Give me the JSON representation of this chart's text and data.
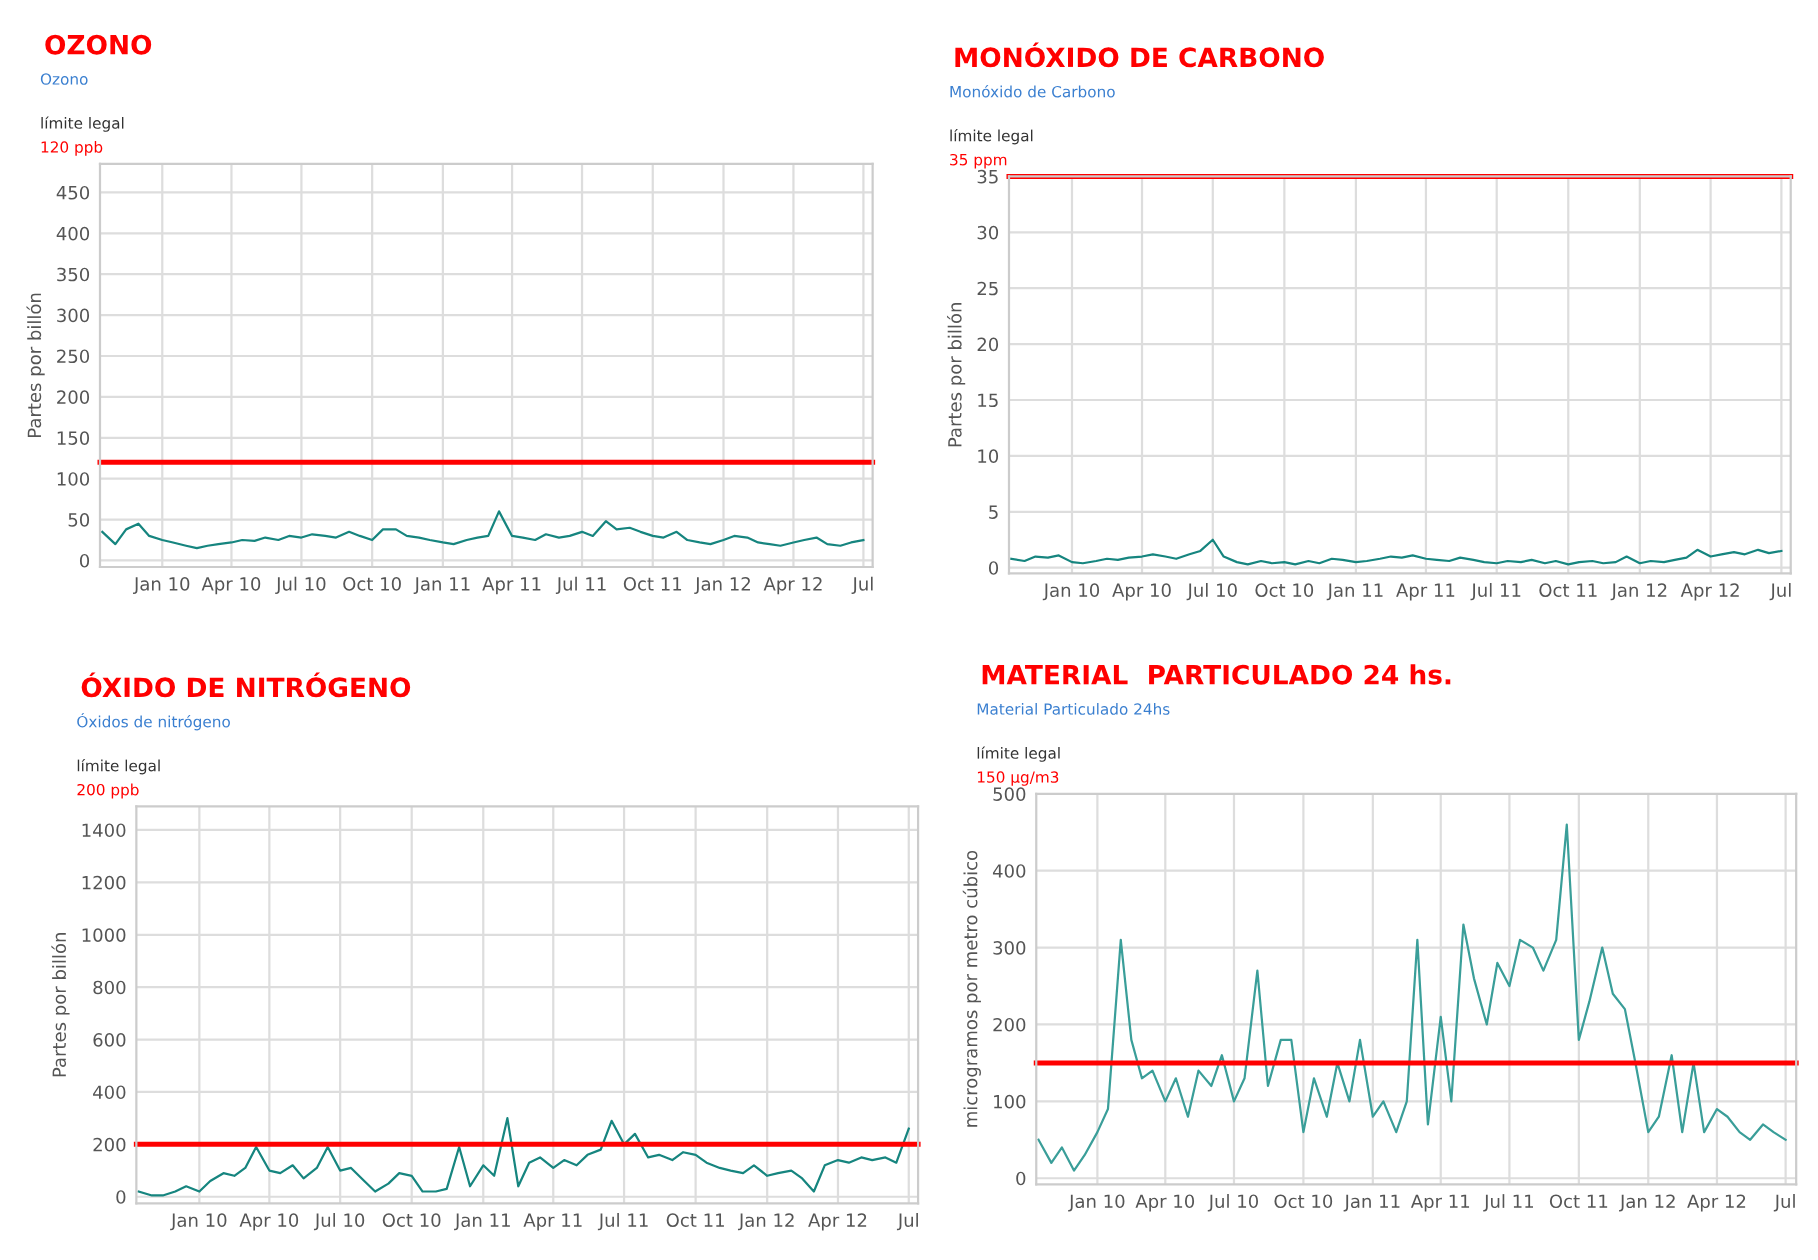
{
  "chart_data": [
    {
      "type": "line",
      "title": "OZONO",
      "subtitle": "Ozono",
      "ylabel": "Partes por billón",
      "annotations": [
        "límite legal"
      ],
      "x": [
        "2009-10-15",
        "2009-11-01",
        "2009-11-15",
        "2009-12-01",
        "2009-12-15",
        "2010-01-01",
        "2010-01-15",
        "2010-02-01",
        "2010-02-15",
        "2010-03-01",
        "2010-03-15",
        "2010-04-01",
        "2010-04-15",
        "2010-05-01",
        "2010-05-15",
        "2010-06-01",
        "2010-06-15",
        "2010-07-01",
        "2010-07-15",
        "2010-08-01",
        "2010-08-15",
        "2010-09-01",
        "2010-09-15",
        "2010-10-01",
        "2010-10-15",
        "2010-11-01",
        "2010-11-15",
        "2010-12-01",
        "2010-12-15",
        "2011-01-01",
        "2011-01-15",
        "2011-02-01",
        "2011-02-15",
        "2011-03-01",
        "2011-03-15",
        "2011-04-01",
        "2011-04-15",
        "2011-05-01",
        "2011-05-15",
        "2011-06-01",
        "2011-06-15",
        "2011-07-01",
        "2011-07-15",
        "2011-08-01",
        "2011-08-15",
        "2011-09-01",
        "2011-09-15",
        "2011-10-01",
        "2011-10-15",
        "2011-11-01",
        "2011-11-15",
        "2011-12-01",
        "2011-12-15",
        "2012-01-01",
        "2012-01-15",
        "2012-02-01",
        "2012-02-15",
        "2012-03-01",
        "2012-03-15",
        "2012-04-01",
        "2012-04-15",
        "2012-05-01",
        "2012-05-15",
        "2012-06-01",
        "2012-06-15",
        "2012-07-01"
      ],
      "series": [
        {
          "color": "#16857f",
          "values": [
            35,
            20,
            38,
            45,
            30,
            25,
            22,
            18,
            15,
            18,
            20,
            22,
            25,
            24,
            28,
            25,
            30,
            28,
            32,
            30,
            28,
            35,
            30,
            25,
            38,
            38,
            30,
            28,
            25,
            22,
            20,
            25,
            28,
            30,
            60,
            30,
            28,
            25,
            32,
            28,
            30,
            35,
            30,
            48,
            38,
            40,
            35,
            30,
            28,
            35,
            25,
            22,
            20,
            25,
            30,
            28,
            22,
            20,
            18,
            22,
            25,
            28,
            20,
            18,
            22,
            25
          ]
        }
      ],
      "xlim": [
        "2009-10-12",
        "2012-07-13"
      ],
      "xticks": [
        {
          "value": "2010-01-01",
          "label": "Jan 10"
        },
        {
          "value": "2010-04-01",
          "label": "Apr 10"
        },
        {
          "value": "2010-07-01",
          "label": "Jul 10"
        },
        {
          "value": "2010-10-01",
          "label": "Oct 10"
        },
        {
          "value": "2011-01-01",
          "label": "Jan 11"
        },
        {
          "value": "2011-04-01",
          "label": "Apr 11"
        },
        {
          "value": "2011-07-01",
          "label": "Jul 11"
        },
        {
          "value": "2011-10-01",
          "label": "Oct 11"
        },
        {
          "value": "2012-01-01",
          "label": "Jan 12"
        },
        {
          "value": "2012-04-01",
          "label": "Apr 12"
        },
        {
          "value": "2012-07-01",
          "label": "Jul"
        }
      ],
      "ylim": [
        -8,
        485
      ],
      "yticks": [
        0,
        50,
        100,
        150,
        200,
        250,
        300,
        350,
        400,
        450
      ],
      "grid": true,
      "ref_lines": [
        {
          "axis": "y",
          "value": 120,
          "label": "120 ppb",
          "color": "#ff0000"
        }
      ]
    },
    {
      "type": "line",
      "title": "MONÓXIDO DE CARBONO",
      "subtitle": "Monóxido de Carbono",
      "ylabel": "Partes por billón",
      "annotations": [
        "límite legal"
      ],
      "x": [
        "2009-10-15",
        "2009-11-01",
        "2009-11-15",
        "2009-12-01",
        "2009-12-15",
        "2010-01-01",
        "2010-01-15",
        "2010-02-01",
        "2010-02-15",
        "2010-03-01",
        "2010-03-15",
        "2010-04-01",
        "2010-04-15",
        "2010-05-01",
        "2010-05-15",
        "2010-06-01",
        "2010-06-15",
        "2010-07-01",
        "2010-07-15",
        "2010-08-01",
        "2010-08-15",
        "2010-09-01",
        "2010-09-15",
        "2010-10-01",
        "2010-10-15",
        "2010-11-01",
        "2010-11-15",
        "2010-12-01",
        "2010-12-15",
        "2011-01-01",
        "2011-01-15",
        "2011-02-01",
        "2011-02-15",
        "2011-03-01",
        "2011-03-15",
        "2011-04-01",
        "2011-04-15",
        "2011-05-01",
        "2011-05-15",
        "2011-06-01",
        "2011-06-15",
        "2011-07-01",
        "2011-07-15",
        "2011-08-01",
        "2011-08-15",
        "2011-09-01",
        "2011-09-15",
        "2011-10-01",
        "2011-10-15",
        "2011-11-01",
        "2011-11-15",
        "2011-12-01",
        "2011-12-15",
        "2012-01-01",
        "2012-01-15",
        "2012-02-01",
        "2012-02-15",
        "2012-03-01",
        "2012-03-15",
        "2012-04-01",
        "2012-04-15",
        "2012-05-01",
        "2012-05-15",
        "2012-06-01",
        "2012-06-15",
        "2012-07-01"
      ],
      "series": [
        {
          "color": "#16857f",
          "values": [
            0.8,
            0.6,
            1.0,
            0.9,
            1.1,
            0.5,
            0.4,
            0.6,
            0.8,
            0.7,
            0.9,
            1.0,
            1.2,
            1.0,
            0.8,
            1.2,
            1.5,
            2.5,
            1.0,
            0.5,
            0.3,
            0.6,
            0.4,
            0.5,
            0.3,
            0.6,
            0.4,
            0.8,
            0.7,
            0.5,
            0.6,
            0.8,
            1.0,
            0.9,
            1.1,
            0.8,
            0.7,
            0.6,
            0.9,
            0.7,
            0.5,
            0.4,
            0.6,
            0.5,
            0.7,
            0.4,
            0.6,
            0.3,
            0.5,
            0.6,
            0.4,
            0.5,
            1.0,
            0.4,
            0.6,
            0.5,
            0.7,
            0.9,
            1.6,
            1.0,
            1.2,
            1.4,
            1.2,
            1.6,
            1.3,
            1.5
          ]
        }
      ],
      "xlim": [
        "2009-10-12",
        "2012-07-13"
      ],
      "xticks": [
        {
          "value": "2010-01-01",
          "label": "Jan 10"
        },
        {
          "value": "2010-04-01",
          "label": "Apr 10"
        },
        {
          "value": "2010-07-01",
          "label": "Jul 10"
        },
        {
          "value": "2010-10-01",
          "label": "Oct 10"
        },
        {
          "value": "2011-01-01",
          "label": "Jan 11"
        },
        {
          "value": "2011-04-01",
          "label": "Apr 11"
        },
        {
          "value": "2011-07-01",
          "label": "Jul 11"
        },
        {
          "value": "2011-10-01",
          "label": "Oct 11"
        },
        {
          "value": "2012-01-01",
          "label": "Jan 12"
        },
        {
          "value": "2012-04-01",
          "label": "Apr 12"
        },
        {
          "value": "2012-07-01",
          "label": "Jul"
        }
      ],
      "ylim": [
        -0.5,
        35
      ],
      "yticks": [
        0,
        5,
        10,
        15,
        20,
        25,
        30,
        35
      ],
      "grid": true,
      "ref_lines": [
        {
          "axis": "y",
          "value": 35,
          "label": "35 ppm",
          "color": "#ff0000"
        }
      ]
    },
    {
      "type": "line",
      "title": "ÓXIDO DE NITRÓGENO",
      "subtitle": "Óxidos de nitrógeno",
      "ylabel": "Partes por billón",
      "annotations": [
        "límite legal"
      ],
      "x": [
        "2009-10-15",
        "2009-11-01",
        "2009-11-15",
        "2009-12-01",
        "2009-12-15",
        "2010-01-01",
        "2010-01-15",
        "2010-02-01",
        "2010-02-15",
        "2010-03-01",
        "2010-03-15",
        "2010-04-01",
        "2010-04-15",
        "2010-05-01",
        "2010-05-15",
        "2010-06-01",
        "2010-06-15",
        "2010-07-01",
        "2010-07-15",
        "2010-08-01",
        "2010-08-15",
        "2010-09-01",
        "2010-09-15",
        "2010-10-01",
        "2010-10-15",
        "2010-11-01",
        "2010-11-15",
        "2010-12-01",
        "2010-12-15",
        "2011-01-01",
        "2011-01-15",
        "2011-02-01",
        "2011-02-15",
        "2011-03-01",
        "2011-03-15",
        "2011-04-01",
        "2011-04-15",
        "2011-05-01",
        "2011-05-15",
        "2011-06-01",
        "2011-06-15",
        "2011-07-01",
        "2011-07-15",
        "2011-08-01",
        "2011-08-15",
        "2011-09-01",
        "2011-09-15",
        "2011-10-01",
        "2011-10-15",
        "2011-11-01",
        "2011-11-15",
        "2011-12-01",
        "2011-12-15",
        "2012-01-01",
        "2012-01-15",
        "2012-02-01",
        "2012-02-15",
        "2012-03-01",
        "2012-03-15",
        "2012-04-01",
        "2012-04-15",
        "2012-05-01",
        "2012-05-15",
        "2012-06-01",
        "2012-06-15",
        "2012-07-01"
      ],
      "series": [
        {
          "color": "#16857f",
          "values": [
            20,
            5,
            5,
            20,
            40,
            20,
            60,
            90,
            80,
            110,
            190,
            100,
            90,
            120,
            70,
            110,
            190,
            100,
            110,
            60,
            20,
            50,
            90,
            80,
            20,
            20,
            30,
            190,
            40,
            120,
            80,
            300,
            40,
            130,
            150,
            110,
            140,
            120,
            160,
            180,
            290,
            200,
            240,
            150,
            160,
            140,
            170,
            160,
            130,
            110,
            100,
            90,
            120,
            80,
            90,
            100,
            70,
            20,
            120,
            140,
            130,
            150,
            140,
            150,
            130,
            260
          ]
        }
      ],
      "xlim": [
        "2009-10-12",
        "2012-07-13"
      ],
      "xticks": [
        {
          "value": "2010-01-01",
          "label": "Jan 10"
        },
        {
          "value": "2010-04-01",
          "label": "Apr 10"
        },
        {
          "value": "2010-07-01",
          "label": "Jul 10"
        },
        {
          "value": "2010-10-01",
          "label": "Oct 10"
        },
        {
          "value": "2011-01-01",
          "label": "Jan 11"
        },
        {
          "value": "2011-04-01",
          "label": "Apr 11"
        },
        {
          "value": "2011-07-01",
          "label": "Jul 11"
        },
        {
          "value": "2011-10-01",
          "label": "Oct 11"
        },
        {
          "value": "2012-01-01",
          "label": "Jan 12"
        },
        {
          "value": "2012-04-01",
          "label": "Apr 12"
        },
        {
          "value": "2012-07-01",
          "label": "Jul"
        }
      ],
      "ylim": [
        -25,
        1490
      ],
      "yticks": [
        0,
        200,
        400,
        600,
        800,
        1000,
        1200,
        1400
      ],
      "grid": true,
      "ref_lines": [
        {
          "axis": "y",
          "value": 200,
          "label": "200 ppb",
          "color": "#ff0000"
        }
      ]
    },
    {
      "type": "line",
      "title": "MATERIAL  PARTICULADO 24 hs.",
      "subtitle": "Material Particulado 24hs",
      "ylabel": "microgramos por metro cúbico",
      "annotations": [
        "límite legal"
      ],
      "x": [
        "2009-10-15",
        "2009-11-01",
        "2009-11-15",
        "2009-12-01",
        "2009-12-15",
        "2010-01-01",
        "2010-01-15",
        "2010-02-01",
        "2010-02-15",
        "2010-03-01",
        "2010-03-15",
        "2010-04-01",
        "2010-04-15",
        "2010-05-01",
        "2010-05-15",
        "2010-06-01",
        "2010-06-15",
        "2010-07-01",
        "2010-07-15",
        "2010-08-01",
        "2010-08-15",
        "2010-09-01",
        "2010-09-15",
        "2010-10-01",
        "2010-10-15",
        "2010-11-01",
        "2010-11-15",
        "2010-12-01",
        "2010-12-15",
        "2011-01-01",
        "2011-01-15",
        "2011-02-01",
        "2011-02-15",
        "2011-03-01",
        "2011-03-15",
        "2011-04-01",
        "2011-04-15",
        "2011-05-01",
        "2011-05-15",
        "2011-06-01",
        "2011-06-15",
        "2011-07-01",
        "2011-07-15",
        "2011-08-01",
        "2011-08-15",
        "2011-09-01",
        "2011-09-15",
        "2011-10-01",
        "2011-10-15",
        "2011-11-01",
        "2011-11-15",
        "2011-12-01",
        "2011-12-15",
        "2012-01-01",
        "2012-01-15",
        "2012-02-01",
        "2012-02-15",
        "2012-03-01",
        "2012-03-15",
        "2012-04-01",
        "2012-04-15",
        "2012-05-01",
        "2012-05-15",
        "2012-06-01",
        "2012-06-15",
        "2012-07-01"
      ],
      "series": [
        {
          "color": "#3a9e99",
          "values": [
            50,
            20,
            40,
            10,
            30,
            60,
            90,
            310,
            180,
            130,
            140,
            100,
            130,
            80,
            140,
            120,
            160,
            100,
            130,
            270,
            120,
            180,
            180,
            60,
            130,
            80,
            150,
            100,
            180,
            80,
            100,
            60,
            100,
            310,
            70,
            210,
            100,
            330,
            260,
            200,
            280,
            250,
            310,
            300,
            270,
            310,
            460,
            180,
            230,
            300,
            240,
            220,
            150,
            60,
            80,
            160,
            60,
            150,
            60,
            90,
            80,
            60,
            50,
            70,
            60,
            50
          ]
        }
      ],
      "xlim": [
        "2009-10-12",
        "2012-07-15"
      ],
      "xticks": [
        {
          "value": "2010-01-01",
          "label": "Jan 10"
        },
        {
          "value": "2010-04-01",
          "label": "Apr 10"
        },
        {
          "value": "2010-07-01",
          "label": "Jul 10"
        },
        {
          "value": "2010-10-01",
          "label": "Oct 10"
        },
        {
          "value": "2011-01-01",
          "label": "Jan 11"
        },
        {
          "value": "2011-04-01",
          "label": "Apr 11"
        },
        {
          "value": "2011-07-01",
          "label": "Jul 11"
        },
        {
          "value": "2011-10-01",
          "label": "Oct 11"
        },
        {
          "value": "2012-01-01",
          "label": "Jan 12"
        },
        {
          "value": "2012-04-01",
          "label": "Apr 12"
        },
        {
          "value": "2012-07-01",
          "label": "Jul"
        }
      ],
      "ylim": [
        -8,
        500
      ],
      "yticks": [
        0,
        100,
        200,
        300,
        400,
        500
      ],
      "grid": true,
      "ref_lines": [
        {
          "axis": "y",
          "value": 150,
          "label": "150 µg/m3",
          "color": "#ff0000"
        }
      ]
    }
  ]
}
